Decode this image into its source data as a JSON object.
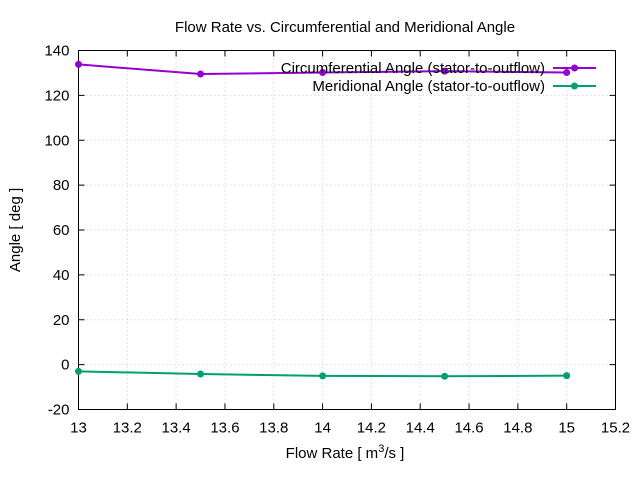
{
  "chart_data": {
    "type": "line",
    "title": "Flow Rate vs. Circumferential and Meridional Angle",
    "xlabel_main": "Flow Rate [ m",
    "xlabel_sup": "3",
    "xlabel_tail": "/s ]",
    "ylabel": "Angle [ deg ]",
    "xlim": [
      13,
      15.2
    ],
    "ylim": [
      -20,
      140
    ],
    "xticks": [
      "13",
      "13.2",
      "13.4",
      "13.6",
      "13.8",
      "14",
      "14.2",
      "14.4",
      "14.6",
      "14.8",
      "15",
      "15.2"
    ],
    "yticks": [
      "-20",
      "0",
      "20",
      "40",
      "60",
      "80",
      "100",
      "120",
      "140"
    ],
    "grid": true,
    "legend_position": "top-right",
    "x": [
      13,
      13.5,
      14,
      14.5,
      15
    ],
    "series": [
      {
        "name": "Circumferential Angle (stator-to-outflow)",
        "color": "#9400d3",
        "values": [
          133.8,
          129.5,
          130.2,
          130.8,
          130.2
        ]
      },
      {
        "name": "Meridional Angle (stator-to-outflow)",
        "color": "#009e73",
        "values": [
          -3.0,
          -4.2,
          -5.0,
          -5.2,
          -4.9
        ]
      }
    ]
  }
}
